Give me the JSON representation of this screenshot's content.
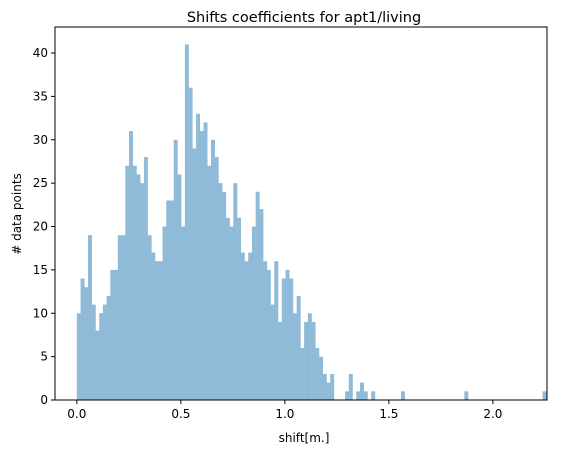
{
  "chart_data": {
    "type": "bar",
    "title": "Shifts coefficients for apt1/living",
    "xlabel": "shift[m.]",
    "ylabel": "# data points",
    "xlim": [
      -0.105,
      2.26
    ],
    "ylim": [
      0,
      43
    ],
    "xticks": [
      "0.0",
      "0.5",
      "1.0",
      "1.5",
      "2.0"
    ],
    "yticks": [
      "0",
      "5",
      "10",
      "15",
      "20",
      "25",
      "30",
      "35",
      "40"
    ],
    "bin_start": 0.0,
    "bin_width": 0.01791,
    "grid": false,
    "color": "#8fbad8",
    "values": [
      10,
      14,
      13,
      19,
      11,
      8,
      10,
      11,
      12,
      15,
      15,
      19,
      19,
      27,
      31,
      27,
      26,
      25,
      28,
      19,
      17,
      16,
      16,
      20,
      23,
      23,
      30,
      26,
      20,
      41,
      36,
      29,
      33,
      31,
      32,
      27,
      30,
      28,
      25,
      24,
      21,
      20,
      25,
      21,
      17,
      16,
      17,
      20,
      24,
      22,
      16,
      15,
      11,
      16,
      9,
      14,
      15,
      14,
      10,
      12,
      6,
      9,
      10,
      9,
      6,
      5,
      3,
      2,
      3,
      0,
      0,
      0,
      1,
      3,
      0,
      1,
      2,
      1,
      0,
      1,
      0,
      0,
      0,
      0,
      0,
      0,
      0,
      1,
      0,
      0,
      0,
      0,
      0,
      0,
      0,
      0,
      0,
      0,
      0,
      0,
      0,
      0,
      0,
      0,
      1,
      0,
      0,
      0,
      0,
      0,
      0,
      0,
      0,
      0,
      0,
      0,
      0,
      0,
      0,
      0,
      0,
      0,
      0,
      0,
      0,
      1
    ]
  }
}
